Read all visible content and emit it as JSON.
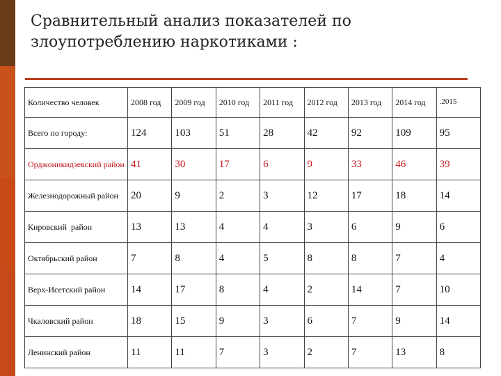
{
  "title_line1": "Сравнительный анализ показателей по",
  "title_line2": "злоупотреблению наркотиками :",
  "header": [
    "Количество человек",
    "2008 год",
    "2009 год",
    "2010 год",
    "2011 год",
    "2012 год",
    "2013 год",
    "2014 год",
    ".2015"
  ],
  "rows": [
    {
      "name": "Всего по городу:",
      "values": [
        "124",
        "103",
        "51",
        "28",
        "42",
        "92",
        "109",
        "95"
      ]
    },
    {
      "name": "Орджоникидзевский район",
      "values": [
        "41",
        "30",
        "17",
        "6",
        "9",
        "33",
        "46",
        "39"
      ]
    },
    {
      "name": "Железнодорожный район",
      "values": [
        "20",
        "9",
        "2",
        "3",
        "12",
        "17",
        "18",
        "14"
      ]
    },
    {
      "name": "Кировский  район",
      "values": [
        "13",
        "13",
        "4",
        "4",
        "3",
        "6",
        "9",
        "6"
      ]
    },
    {
      "name": "Октябрьский район",
      "values": [
        "7",
        "8",
        "4",
        "5",
        "8",
        "8",
        "7",
        "4"
      ]
    },
    {
      "name": "Верх-Исетский район",
      "values": [
        "14",
        "17",
        "8",
        "4",
        "2",
        "14",
        "7",
        "10"
      ]
    },
    {
      "name": "Чкаловский район",
      "values": [
        "18",
        "15",
        "9",
        "3",
        "6",
        "7",
        "9",
        "14"
      ]
    },
    {
      "name": "Ленинский район",
      "values": [
        "11",
        "11",
        "7",
        "3",
        "2",
        "7",
        "13",
        "8"
      ]
    }
  ],
  "colors": {
    "highlight_row": "#c8141e",
    "accent": "#b8401c",
    "sidebar_dark": "#6b3a17",
    "sidebar_orange": "#c8521a"
  }
}
